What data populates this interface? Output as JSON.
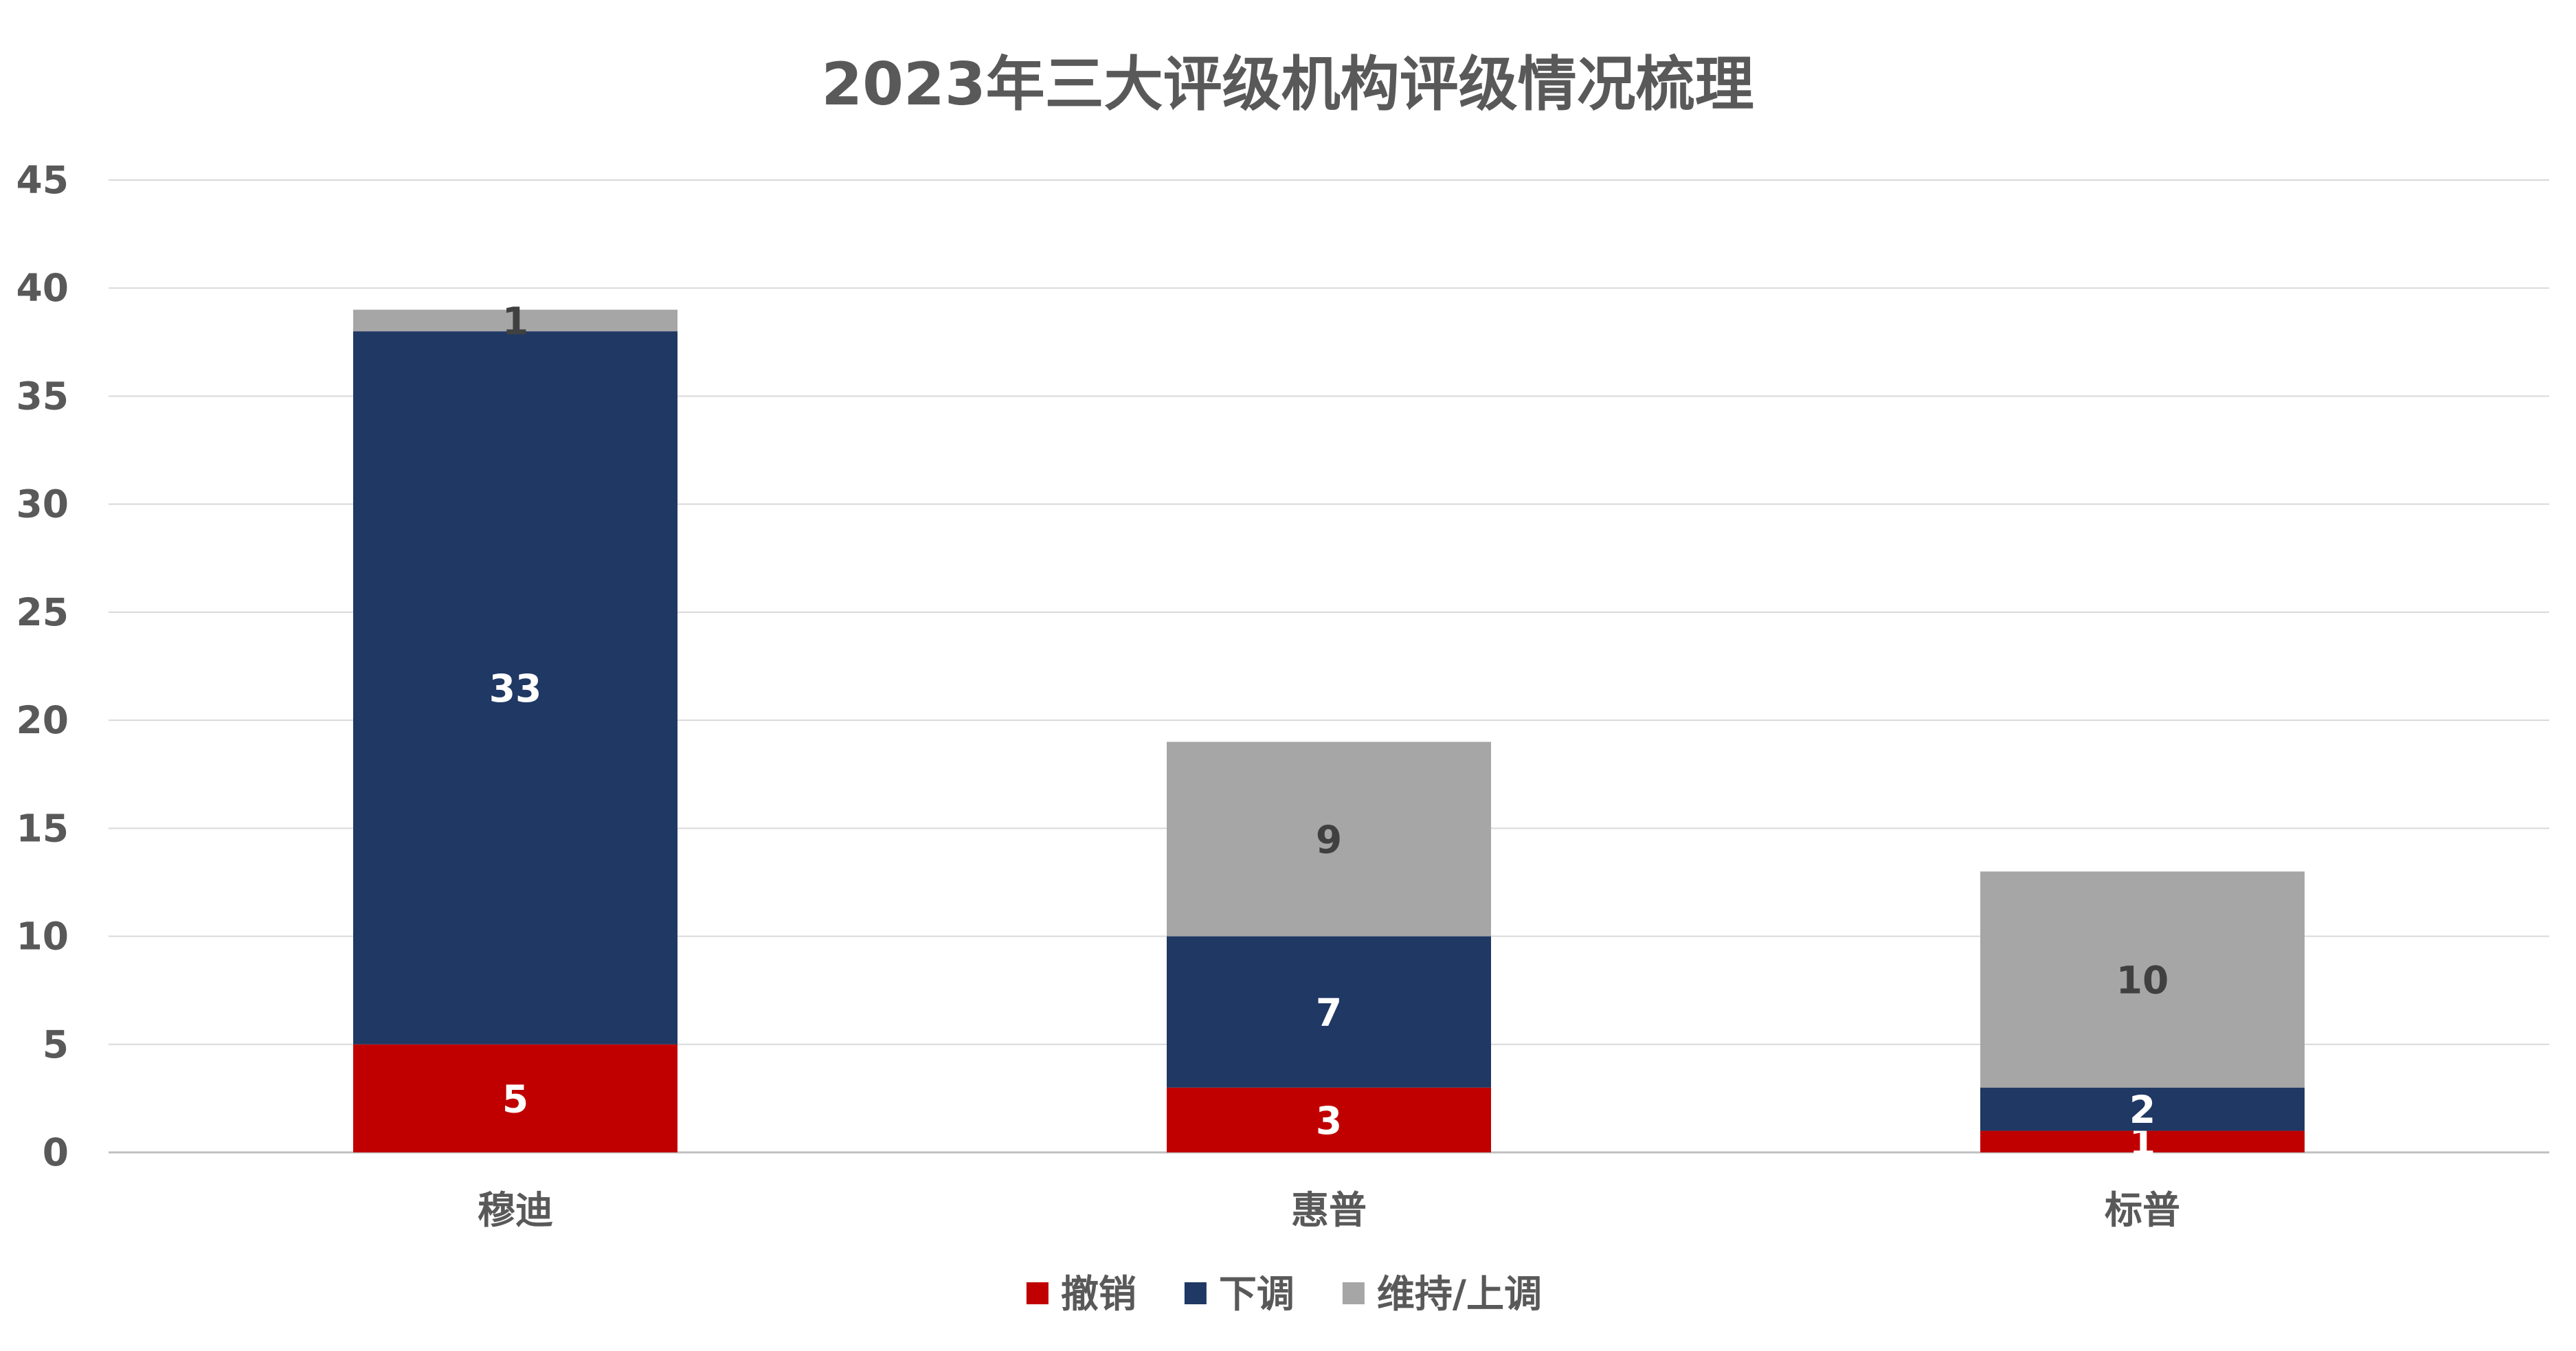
{
  "chart_data": {
    "type": "bar",
    "stacked": true,
    "title": "2023年三大评级机构评级情况梳理",
    "categories": [
      "穆迪",
      "惠普",
      "标普"
    ],
    "series": [
      {
        "name": "撤销",
        "values": [
          5,
          3,
          1
        ],
        "color": "#C00000",
        "label_color": "#ffffff"
      },
      {
        "name": "下调",
        "values": [
          33,
          7,
          2
        ],
        "color": "#1F3864",
        "label_color": "#ffffff"
      },
      {
        "name": "维持/上调",
        "values": [
          1,
          9,
          10
        ],
        "color": "#A6A6A6",
        "label_color": "#404040"
      }
    ],
    "ylim": [
      0,
      45
    ],
    "yticks": [
      0,
      5,
      10,
      15,
      20,
      25,
      30,
      35,
      40,
      45
    ],
    "grid": true,
    "legend_position": "bottom"
  }
}
